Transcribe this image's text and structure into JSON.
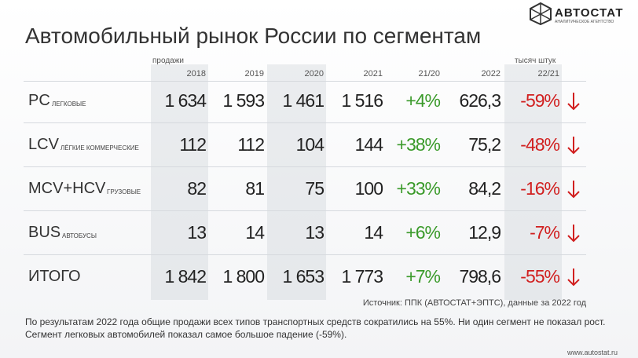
{
  "logo": {
    "name": "АВТОСТАТ",
    "tagline": "АНАЛИТИЧЕСКОЕ АГЕНТСТВО"
  },
  "title": "Автомобильный рынок России по сегментам",
  "table": {
    "left_note": "продажи",
    "right_note": "тысяч штук",
    "columns": [
      "2018",
      "2019",
      "2020",
      "2021",
      "21/20",
      "2022",
      "22/21"
    ],
    "rows": [
      {
        "name": "PC",
        "sub": "легковые",
        "cells": [
          "1 634",
          "1 593",
          "1 461",
          "1 516",
          "+4%",
          "626,3",
          "-59%"
        ]
      },
      {
        "name": "LCV",
        "sub": "лёгкие коммерческие",
        "cells": [
          "112",
          "112",
          "104",
          "144",
          "+38%",
          "75,2",
          "-48%"
        ]
      },
      {
        "name": "MCV+HCV",
        "sub": "грузовые",
        "cells": [
          "82",
          "81",
          "75",
          "100",
          "+33%",
          "84,2",
          "-16%"
        ]
      },
      {
        "name": "BUS",
        "sub": "автобусы",
        "cells": [
          "13",
          "14",
          "13",
          "14",
          "+6%",
          "12,9",
          "-7%"
        ]
      },
      {
        "name": "ИТОГО",
        "sub": null,
        "cells": [
          "1 842",
          "1 800",
          "1 653",
          "1 773",
          "+7%",
          "798,6",
          "-55%"
        ]
      }
    ]
  },
  "source": "Источник: ППК (АВТОСТАТ+ЭПТС), данные за 2022 год",
  "summary": "По результатам 2022 года общие продажи всех типов транспортных средств сократились на 55%. Ни один сегмент не показал рост. Сегмент легковых автомобилей показал самое большое падение (-59%).",
  "footer": "www.autostat.ru"
}
